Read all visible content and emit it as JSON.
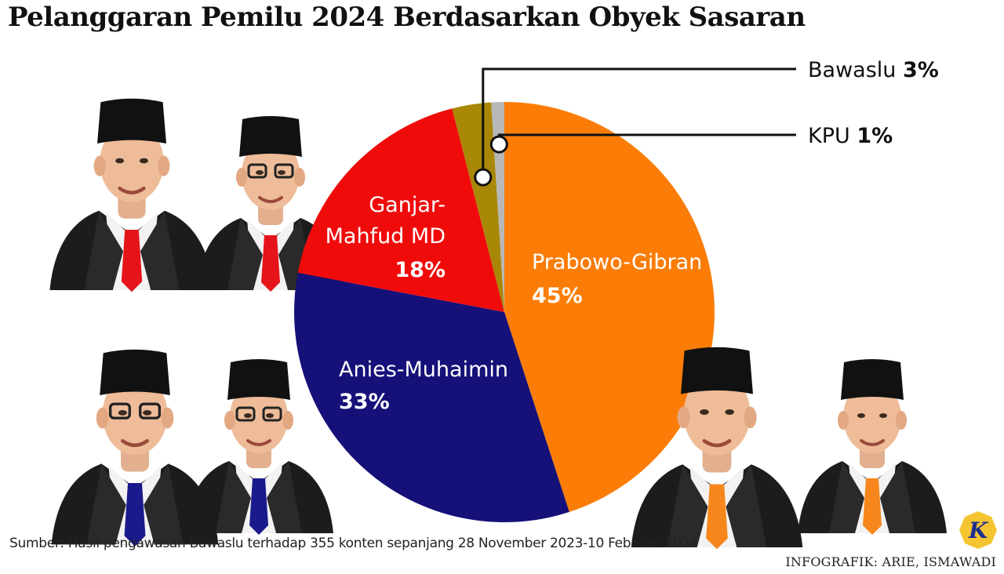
{
  "header": {
    "title": "Pelanggaran Pemilu 2024 Berdasarkan Obyek Sasaran"
  },
  "chart_data": {
    "type": "pie",
    "title": "Pelanggaran Pemilu 2024 Berdasarkan Obyek Sasaran",
    "slices": [
      {
        "label": "Prabowo-Gibran",
        "value": 45,
        "value_label": "45%",
        "color": "#fb7d07"
      },
      {
        "label": "Anies-Muhaimin",
        "value": 33,
        "value_label": "33%",
        "color": "#161079"
      },
      {
        "label": "Ganjar-Mahfud MD",
        "label_lines": [
          "Ganjar-",
          "Mahfud MD"
        ],
        "value": 18,
        "value_label": "18%",
        "color": "#f00b0b"
      },
      {
        "label": "Bawaslu",
        "value": 3,
        "value_label": "3%",
        "color": "#a98707"
      },
      {
        "label": "KPU",
        "value": 1,
        "value_label": "1%",
        "color": "#b8b8b8"
      }
    ]
  },
  "footer": {
    "source": "Sumber: Hasil pengawasan Bawaslu terhadap 355 konten sepanjang 28 November 2023-10 Februari 2024",
    "credit": "INFOGRAFIK: ARIE, ISMAWADI",
    "logo_letter": "K"
  },
  "illustrations": {
    "ganjar_mahfud": {
      "tie_color": "#e5141b"
    },
    "anies_muhaimin": {
      "tie_color": "#1a1a8c"
    },
    "prabowo_gibran": {
      "tie_color": "#f7861c"
    }
  }
}
